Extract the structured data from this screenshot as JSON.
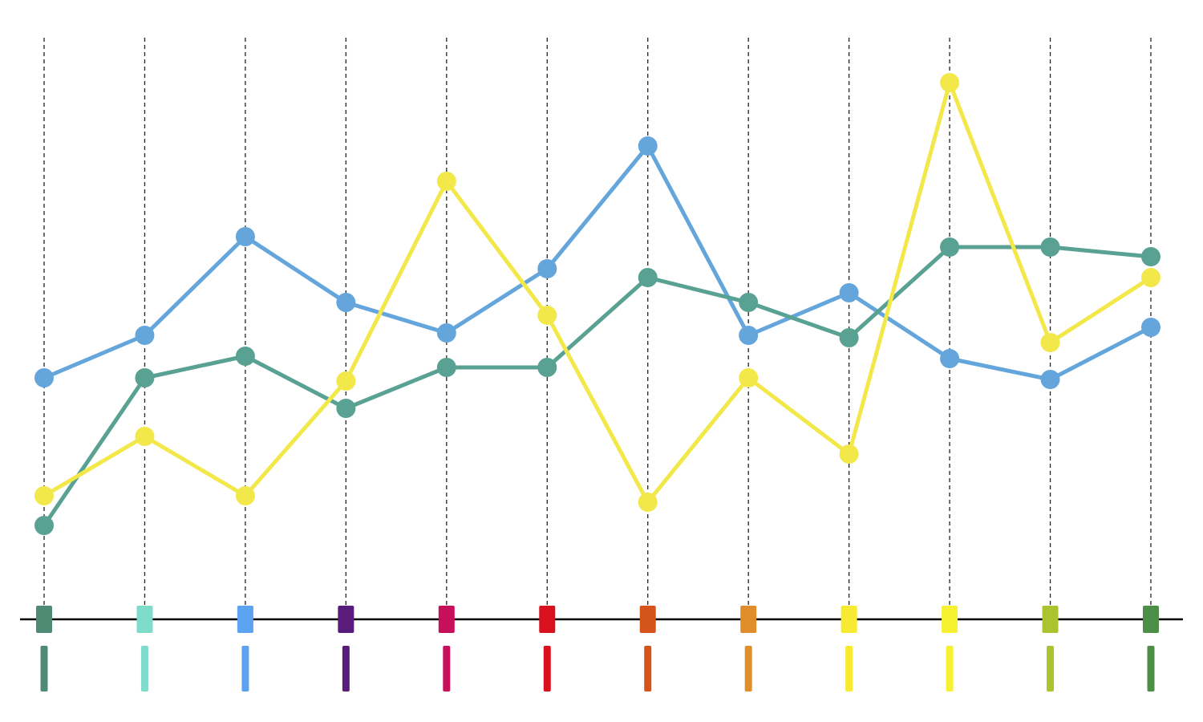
{
  "chart_data": {
    "type": "line",
    "categories": [
      null,
      null,
      null,
      null,
      null,
      null,
      null,
      null,
      null,
      null,
      null,
      null
    ],
    "category_colors": [
      "#4e8a74",
      "#7fdccb",
      "#5ba3f0",
      "#5a1c7a",
      "#c8105a",
      "#d9101e",
      "#d4541c",
      "#e08e2a",
      "#f8ea30",
      "#f6f232",
      "#a9c42e",
      "#4e8f48"
    ],
    "series": [
      {
        "color": "#64a6dc",
        "values": [
          30.1,
          35.4,
          47.7,
          39.5,
          35.7,
          43.7,
          59.0,
          35.4,
          40.7,
          32.5,
          29.9,
          36.4
        ]
      },
      {
        "color": "#58a193",
        "values": [
          11.7,
          30.1,
          32.8,
          26.3,
          31.4,
          31.4,
          42.6,
          39.5,
          35.1,
          46.4,
          46.4,
          45.2
        ]
      },
      {
        "color": "#f2e84a",
        "values": [
          15.4,
          22.8,
          15.4,
          29.7,
          54.6,
          37.9,
          14.6,
          30.1,
          20.6,
          66.9,
          34.5,
          42.6
        ]
      }
    ],
    "ylim": [
      0,
      72.5
    ],
    "grid": true
  }
}
